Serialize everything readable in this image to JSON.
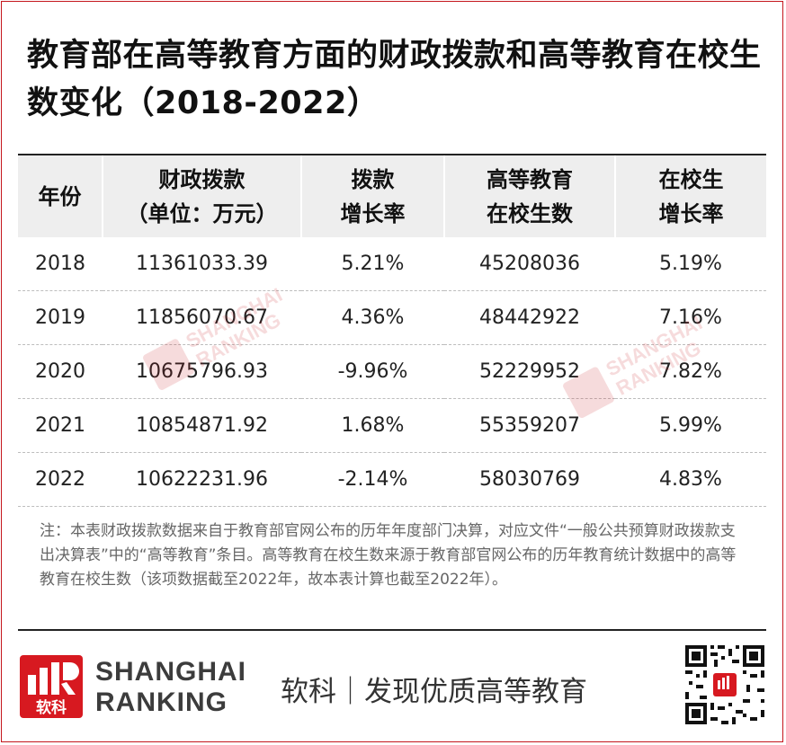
{
  "title": "教育部在高等教育方面的财政拨款和高等教育在校生数变化（2018-2022）",
  "table": {
    "headers": [
      {
        "line1": "年份",
        "line2": ""
      },
      {
        "line1": "财政拨款",
        "line2": "（单位：万元）"
      },
      {
        "line1": "拨款",
        "line2": "增长率"
      },
      {
        "line1": "高等教育",
        "line2": "在校生数"
      },
      {
        "line1": "在校生",
        "line2": "增长率"
      }
    ],
    "rows": [
      {
        "year": "2018",
        "funding": "11361033.39",
        "funding_growth": "5.21%",
        "students": "45208036",
        "student_growth": "5.19%"
      },
      {
        "year": "2019",
        "funding": "11856070.67",
        "funding_growth": "4.36%",
        "students": "48442922",
        "student_growth": "7.16%"
      },
      {
        "year": "2020",
        "funding": "10675796.93",
        "funding_growth": "-9.96%",
        "students": "52229952",
        "student_growth": "7.82%"
      },
      {
        "year": "2021",
        "funding": "10854871.92",
        "funding_growth": "1.68%",
        "students": "55359207",
        "student_growth": "5.99%"
      },
      {
        "year": "2022",
        "funding": "10622231.96",
        "funding_growth": "-2.14%",
        "students": "58030769",
        "student_growth": "4.83%"
      }
    ]
  },
  "note": "注：本表财政拨款数据来自于教育部官网公布的历年年度部门决算，对应文件“一般公共预算财政拨款支出决算表”中的“高等教育”条目。高等教育在校生数来源于教育部官网公布的历年教育统计数据中的高等教育在校生数（该项数据截至2022年，故本表计算也截至2022年）。",
  "footer": {
    "logo_cn": "软科",
    "logo_en_line1": "SHANGHAI",
    "logo_en_line2": "RANKING",
    "slogan": "软科｜发现优质高等教育"
  },
  "watermark": {
    "cn": "软科",
    "line1": "SHANGHAI",
    "line2": "RANKING"
  },
  "colors": {
    "brand_red": "#d71920",
    "header_bg": "#eeeeee",
    "note_text": "#666666"
  }
}
